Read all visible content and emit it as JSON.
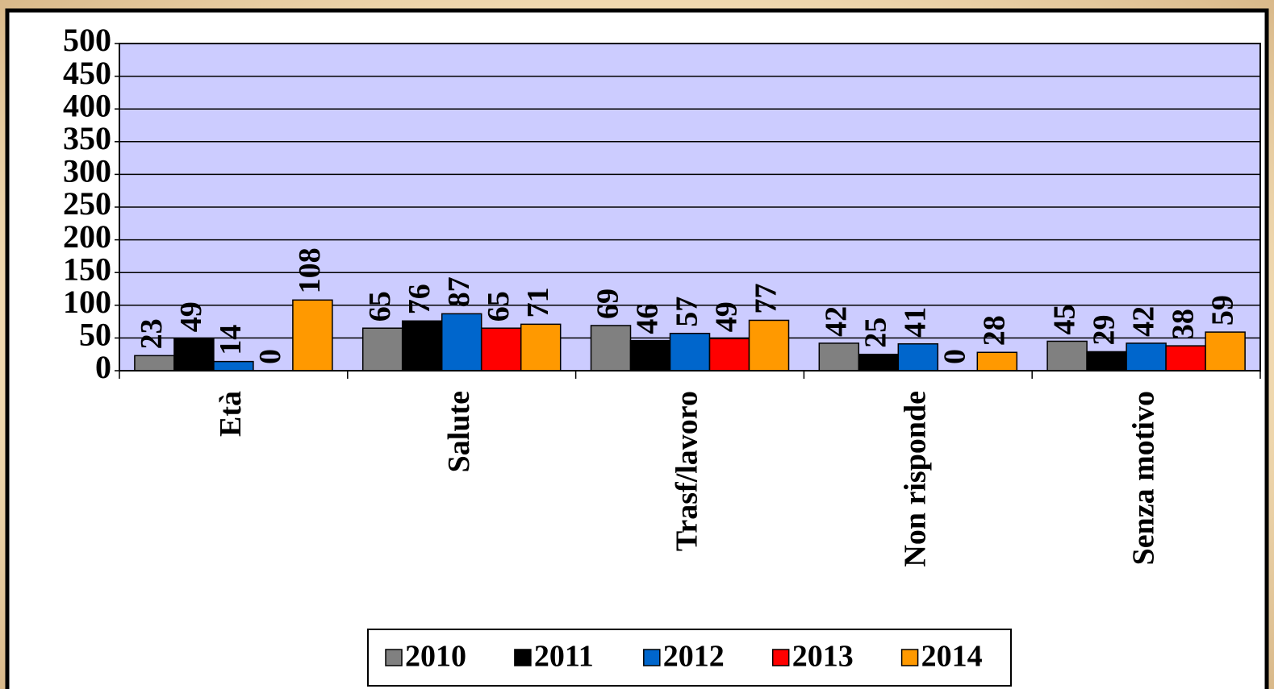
{
  "chart_data": {
    "type": "bar",
    "categories": [
      "Età",
      "Salute",
      "Trasf/lavoro",
      "Non risponde",
      "Senza motivo"
    ],
    "series": [
      {
        "name": "2010",
        "color": "#808080",
        "values": [
          23,
          65,
          69,
          42,
          45
        ]
      },
      {
        "name": "2011",
        "color": "#000000",
        "values": [
          49,
          76,
          46,
          25,
          29
        ]
      },
      {
        "name": "2012",
        "color": "#0066cc",
        "values": [
          14,
          87,
          57,
          41,
          42
        ]
      },
      {
        "name": "2013",
        "color": "#ff0000",
        "values": [
          0,
          65,
          49,
          0,
          38
        ]
      },
      {
        "name": "2014",
        "color": "#ff9900",
        "values": [
          108,
          71,
          77,
          28,
          59
        ]
      }
    ],
    "ylim": [
      0,
      500
    ],
    "yticks": [
      0,
      50,
      100,
      150,
      200,
      250,
      300,
      350,
      400,
      450,
      500
    ],
    "grid": true,
    "legend": "bottom",
    "plot_background": "#ccccff"
  }
}
